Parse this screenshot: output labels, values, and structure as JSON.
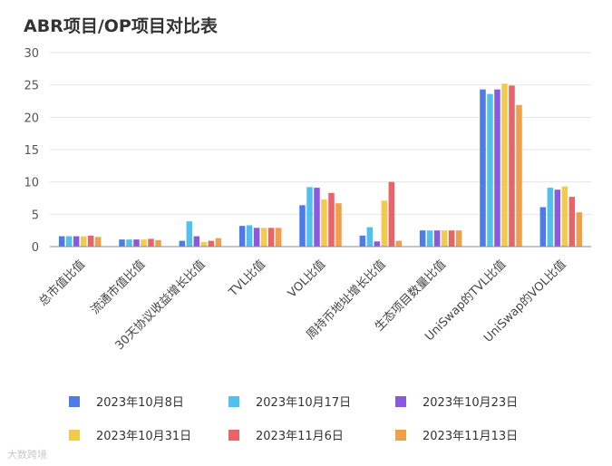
{
  "chart_data": {
    "type": "bar",
    "title": "ABR项目/OP项目对比表",
    "xlabel": "",
    "ylabel": "",
    "ylim": [
      0,
      30
    ],
    "yticks": [
      0,
      5,
      10,
      15,
      20,
      25,
      30
    ],
    "grid": true,
    "legend_position": "bottom",
    "categories": [
      "总市值比值",
      "流通市值比值",
      "30天协议收益增长比值",
      "TVL比值",
      "VOL比值",
      "周持币地址增长比值",
      "生态项目数量比值",
      "UniSwap的TVL比值",
      "UniSwap的VOL比值"
    ],
    "series": [
      {
        "name": "2023年10月8日",
        "color": "#4e7bea",
        "values": [
          1.6,
          1.1,
          0.9,
          3.2,
          6.4,
          1.7,
          2.5,
          24.3,
          6.1
        ]
      },
      {
        "name": "2023年10月17日",
        "color": "#52c0ee",
        "values": [
          1.6,
          1.1,
          3.9,
          3.3,
          9.2,
          3.0,
          2.5,
          23.6,
          9.1
        ]
      },
      {
        "name": "2023年10月23日",
        "color": "#8b59e0",
        "values": [
          1.6,
          1.1,
          1.6,
          2.9,
          9.1,
          0.8,
          2.5,
          24.3,
          8.8
        ]
      },
      {
        "name": "2023年10月31日",
        "color": "#f2cb4e",
        "values": [
          1.6,
          1.1,
          0.7,
          2.9,
          7.3,
          7.1,
          2.5,
          25.2,
          9.3
        ]
      },
      {
        "name": "2023年11月6日",
        "color": "#e8636a",
        "values": [
          1.7,
          1.2,
          0.9,
          2.9,
          8.3,
          10.0,
          2.5,
          24.9,
          7.7
        ]
      },
      {
        "name": "2023年11月13日",
        "color": "#f0a04a",
        "values": [
          1.5,
          1.0,
          1.3,
          2.9,
          6.7,
          0.9,
          2.5,
          21.9,
          5.3
        ]
      }
    ]
  },
  "watermark": "大数跨境"
}
